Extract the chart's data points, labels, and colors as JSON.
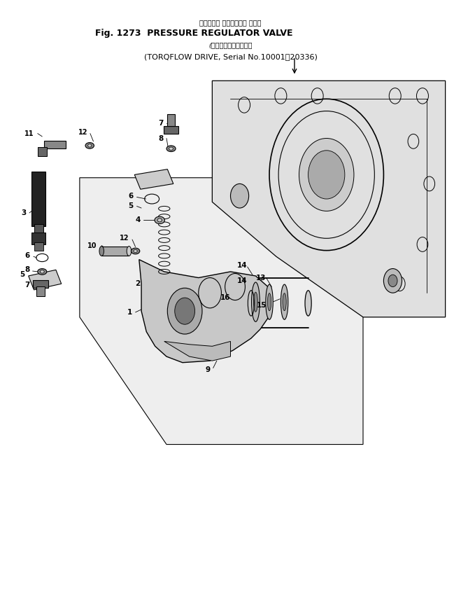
{
  "title_line1": "ブレッシャ レギュレータ バルブ",
  "title_line2": "Fig. 1273  PRESSURE REGULATOR VALVE",
  "title_line3": "(トルクフロー専用号機",
  "title_line4": "(TORQFLOW DRIVE, Serial No.10001～20336)",
  "bg_color": "#ffffff",
  "line_color": "#000000",
  "fig_width": 6.59,
  "fig_height": 8.71
}
